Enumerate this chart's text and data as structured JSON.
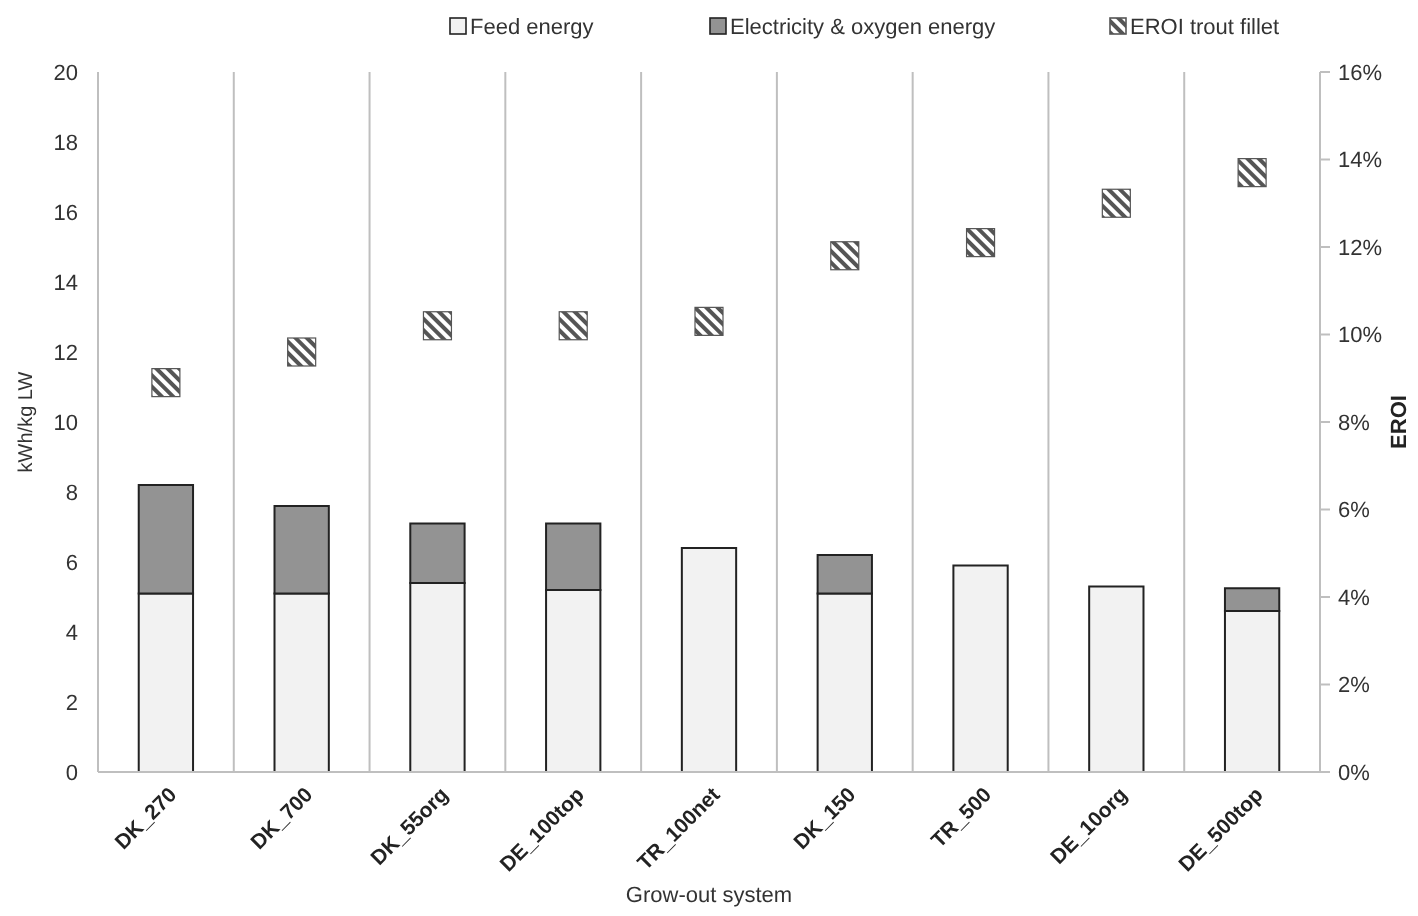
{
  "chart_data": {
    "type": "bar",
    "stacked": true,
    "xlabel": "Grow-out system",
    "ylabel": "kWh/kg LW",
    "y2label": "EROI",
    "categories": [
      "DK_270",
      "DK_700",
      "DK_55org",
      "DE_100top",
      "TR_100net",
      "DK_150",
      "TR_500",
      "DE_10org",
      "DE_500top"
    ],
    "series": [
      {
        "name": "Feed energy",
        "color": "#f2f2f2",
        "values": [
          5.1,
          5.1,
          5.4,
          5.2,
          6.4,
          5.1,
          5.9,
          5.3,
          4.6
        ]
      },
      {
        "name": "Electricity & oxygen energy",
        "color": "#939393",
        "values": [
          3.1,
          2.5,
          1.7,
          1.9,
          0,
          1.1,
          0,
          0,
          0.65
        ]
      },
      {
        "name": "EROI trout fillet",
        "type": "scatter",
        "axis": "y2",
        "marker": "square",
        "color": "#555555",
        "values": [
          8.9,
          9.6,
          10.2,
          10.2,
          10.3,
          11.8,
          12.1,
          13.0,
          13.7
        ]
      }
    ],
    "ylim": [
      0,
      20
    ],
    "yticks": [
      0,
      2,
      4,
      6,
      8,
      10,
      12,
      14,
      16,
      18,
      20
    ],
    "y2lim": [
      0,
      16
    ],
    "y2ticks": [
      {
        "value": 0,
        "label": "0%"
      },
      {
        "value": 2,
        "label": "2%"
      },
      {
        "value": 4,
        "label": "4%"
      },
      {
        "value": 6,
        "label": "6%"
      },
      {
        "value": 8,
        "label": "8%"
      },
      {
        "value": 10,
        "label": "10%"
      },
      {
        "value": 12,
        "label": "12%"
      },
      {
        "value": 14,
        "label": "14%"
      },
      {
        "value": 16,
        "label": "16%"
      }
    ],
    "grid": "x",
    "legend": "top"
  }
}
